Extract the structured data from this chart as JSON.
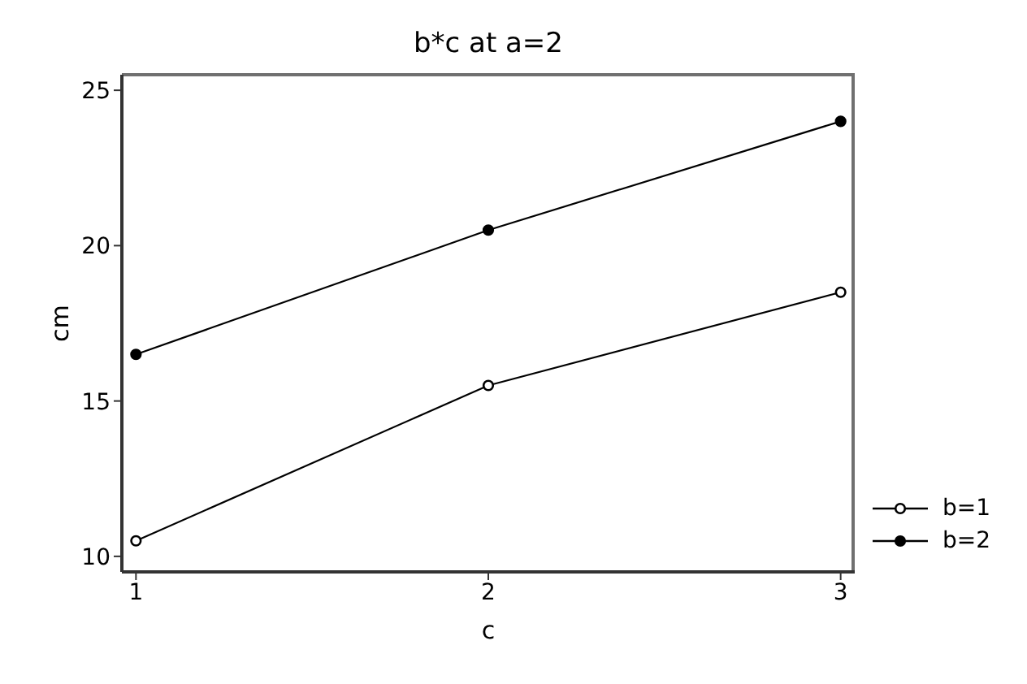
{
  "chart_data": {
    "type": "line",
    "title": "b*c at a=2",
    "xlabel": "c",
    "ylabel": "cm",
    "x": [
      1,
      2,
      3
    ],
    "series": [
      {
        "name": "b=1",
        "color": "#000000",
        "values": [
          10.5,
          15.5,
          18.5
        ]
      },
      {
        "name": "b=2",
        "color": "#000000",
        "values": [
          16.5,
          20.5,
          24
        ]
      }
    ],
    "xlim": [
      0.96,
      3.04
    ],
    "xticks": [
      1,
      2,
      3
    ],
    "ylim": [
      9.5,
      25.5
    ],
    "yticks": [
      10,
      15,
      20,
      25
    ],
    "marker": "circle",
    "line_style": "solid",
    "legend": "bottom right"
  }
}
